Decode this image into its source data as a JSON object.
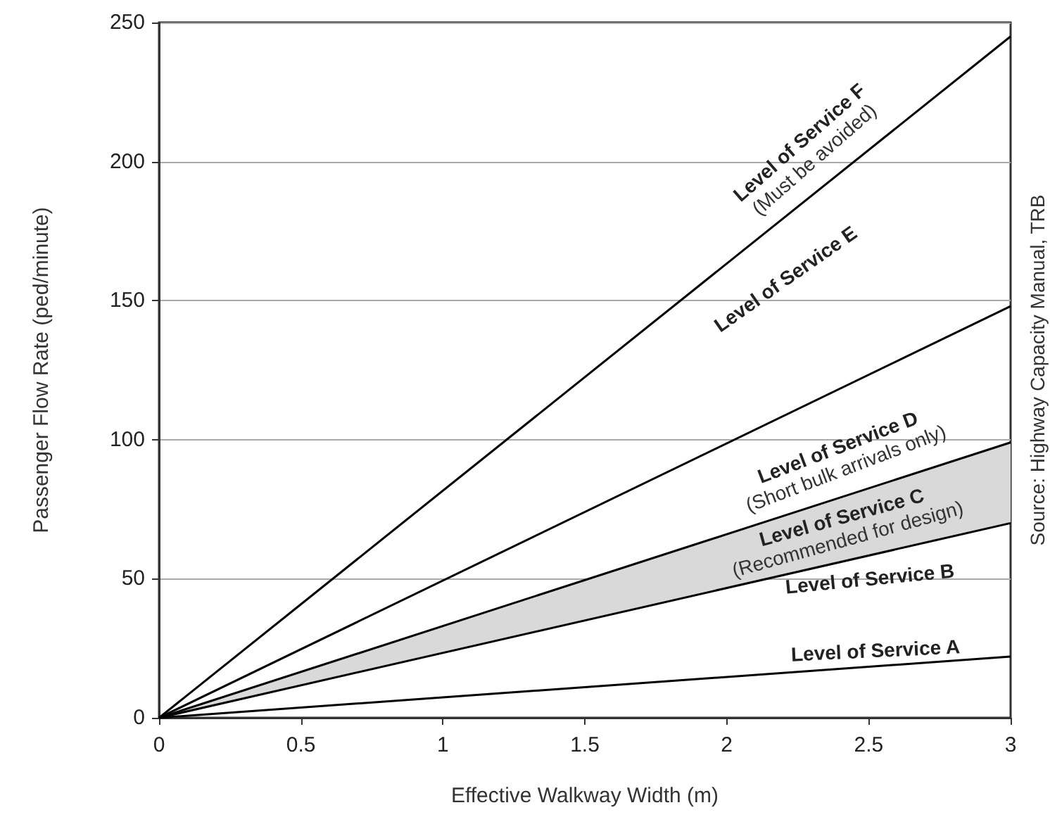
{
  "chart_data": {
    "type": "line",
    "xlabel": "Effective Walkway Width (m)",
    "ylabel": "Passenger Flow Rate (ped/minute)",
    "x": [
      0,
      3
    ],
    "xlim": [
      0,
      3
    ],
    "ylim": [
      0,
      250
    ],
    "xticks": [
      0,
      0.5,
      1,
      1.5,
      2,
      2.5,
      3
    ],
    "yticks": [
      0,
      50,
      100,
      150,
      200,
      250
    ],
    "grid": "y",
    "marker": "none",
    "line_style": "solid",
    "series": [
      {
        "color": "#000000",
        "values": [
          0,
          22
        ]
      },
      {
        "color": "#000000",
        "values": [
          0,
          70
        ],
        "lower": [
          0,
          70
        ],
        "upper": [
          0,
          99
        ]
      },
      {
        "color": "#000000",
        "values": [
          0,
          99
        ]
      },
      {
        "color": "#000000",
        "values": [
          0,
          148
        ]
      },
      {
        "color": "#000000",
        "values": [
          0,
          245
        ]
      }
    ],
    "annotations": [
      "Level of Service F\n(Must be avoided)",
      "Level of Service E",
      "Level of Service D\n(Short bulk arrivals only)",
      "Level of Service C\n(Recommended for design)",
      "Level of Service B",
      "Level of Service A",
      "Source: Highway Capacity Manual, TRB"
    ]
  }
}
